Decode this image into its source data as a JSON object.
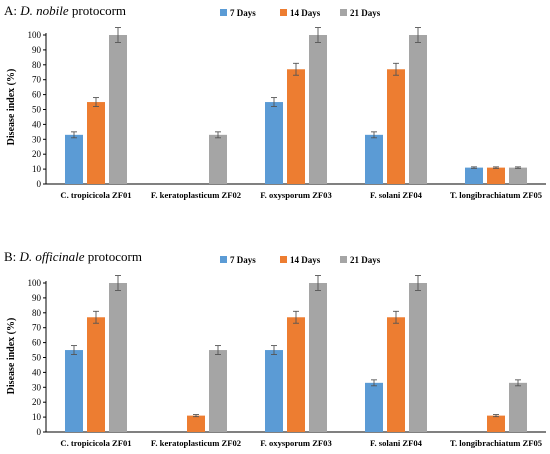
{
  "chart_data": [
    {
      "type": "bar",
      "title_prefix": "A: ",
      "title_italic": "D. nobile",
      "title_suffix": " protocorm",
      "ylabel": "Disease index (%)",
      "xlabel": "",
      "ylim": [
        0,
        100
      ],
      "yticks": [
        0,
        10,
        20,
        30,
        40,
        50,
        60,
        70,
        80,
        90,
        100
      ],
      "grid": false,
      "legend": "top",
      "categories": [
        "C. tropicicola ZF01",
        "F. keratoplasticum ZF02",
        "F. oxysporum ZF03",
        "F. solani ZF04",
        "T. longibrachiatum ZF05"
      ],
      "series": [
        {
          "name": "7 Days",
          "color": "#5B9BD5",
          "values": [
            33,
            0,
            55,
            33,
            11
          ],
          "errors": [
            2,
            0,
            3,
            2,
            0.5
          ]
        },
        {
          "name": "14 Days",
          "color": "#ED7D31",
          "values": [
            55,
            0,
            77,
            77,
            11
          ],
          "errors": [
            3,
            0,
            4,
            4,
            0.5
          ]
        },
        {
          "name": "21 Days",
          "color": "#A5A5A5",
          "values": [
            100,
            33,
            100,
            100,
            11
          ],
          "errors": [
            5,
            2,
            5,
            5,
            0.5
          ]
        }
      ]
    },
    {
      "type": "bar",
      "title_prefix": "B: ",
      "title_italic": "D. officinale",
      "title_suffix": " protocorm",
      "ylabel": "Disease index (%)",
      "xlabel": "",
      "ylim": [
        0,
        100
      ],
      "yticks": [
        0,
        10,
        20,
        30,
        40,
        50,
        60,
        70,
        80,
        90,
        100
      ],
      "grid": false,
      "legend": "top",
      "categories": [
        "C. tropicicola ZF01",
        "F. keratoplasticum ZF02",
        "F. oxysporum ZF03",
        "F. solani ZF04",
        "T. longibrachiatum ZF05"
      ],
      "series": [
        {
          "name": "7 Days",
          "color": "#5B9BD5",
          "values": [
            55,
            0,
            55,
            33,
            0
          ],
          "errors": [
            3,
            0,
            3,
            2,
            0
          ]
        },
        {
          "name": "14 Days",
          "color": "#ED7D31",
          "values": [
            77,
            11,
            77,
            77,
            11
          ],
          "errors": [
            4,
            0.7,
            4,
            4,
            0.7
          ]
        },
        {
          "name": "21 Days",
          "color": "#A5A5A5",
          "values": [
            100,
            55,
            100,
            100,
            33
          ],
          "errors": [
            5,
            3,
            5,
            5,
            2
          ]
        }
      ]
    }
  ]
}
